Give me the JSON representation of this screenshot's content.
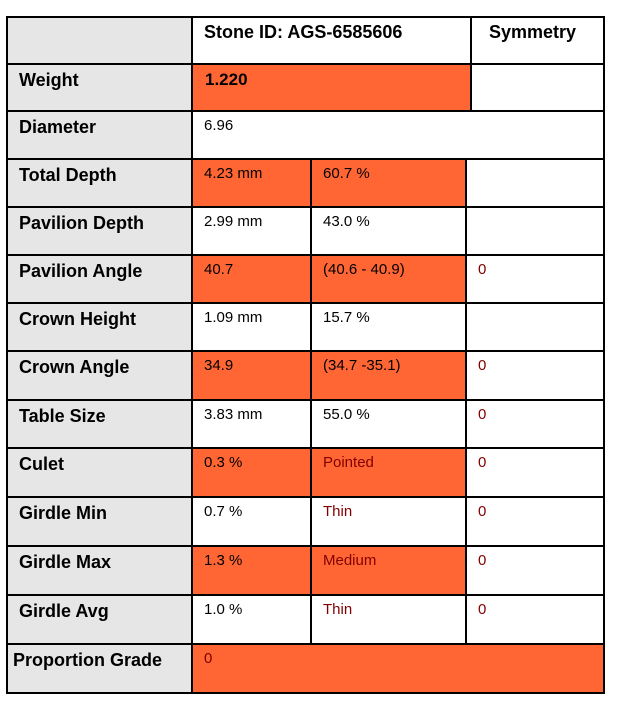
{
  "colors": {
    "accent": "#ff6633",
    "label_bg": "#e6e6e6",
    "dark_red_text": "#800000"
  },
  "header": {
    "stone_id": "Stone ID: AGS-6585606",
    "symmetry": "Symmetry"
  },
  "rows": [
    {
      "label": "Weight",
      "value": "1.220"
    },
    {
      "label": "Diameter",
      "value": "6.96"
    },
    {
      "label": "Total Depth",
      "a": "4.23 mm",
      "b": "60.7 %",
      "c": ""
    },
    {
      "label": "Pavilion Depth",
      "a": "2.99 mm",
      "b": "43.0 %",
      "c": ""
    },
    {
      "label": "Pavilion Angle",
      "a": "40.7",
      "b": "(40.6 - 40.9)",
      "c": "0"
    },
    {
      "label": "Crown Height",
      "a": "1.09 mm",
      "b": "15.7 %",
      "c": ""
    },
    {
      "label": "Crown Angle",
      "a": "34.9",
      "b": "(34.7 -35.1)",
      "c": "0"
    },
    {
      "label": "Table Size",
      "a": "3.83 mm",
      "b": "55.0 %",
      "c": "0"
    },
    {
      "label": "Culet",
      "a": "0.3 %",
      "b": "Pointed",
      "c": "0"
    },
    {
      "label": "Girdle Min",
      "a": "0.7 %",
      "b": "Thin",
      "c": "0"
    },
    {
      "label": "Girdle Max",
      "a": "1.3 %",
      "b": "Medium",
      "c": "0"
    },
    {
      "label": "Girdle Avg",
      "a": "1.0 %",
      "b": "Thin",
      "c": "0"
    }
  ],
  "proportion_grade": {
    "label": "Proportion Grade",
    "value": "0"
  }
}
